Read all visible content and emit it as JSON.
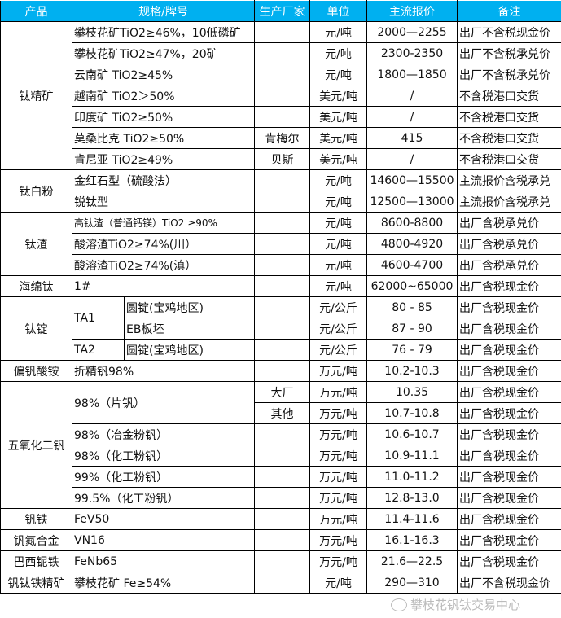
{
  "header": [
    "产品",
    "规格/牌号",
    "生产厂家",
    "单位",
    "主流报价",
    "备注"
  ],
  "colors": {
    "header_bg": "#00B0F0",
    "header_text": "#FFFFFF"
  },
  "groups": [
    {
      "product": "钛精矿",
      "rows": [
        {
          "spec": "攀枝花矿TiO2≥46%，10低磷矿",
          "maker": "",
          "unit": "元/吨",
          "price": "2000—2255",
          "note": "出厂不含税现金价"
        },
        {
          "spec": "攀枝花矿TiO2≥47%，20矿",
          "maker": "",
          "unit": "元/吨",
          "price": "2300-2350",
          "note": "出厂不含税承兑价"
        },
        {
          "spec": "云南矿 TiO2≥45%",
          "maker": "",
          "unit": "元/吨",
          "price": "1800—1850",
          "note": "出厂不含税承兑价"
        },
        {
          "spec": "越南矿 TiO2＞50%",
          "maker": "",
          "unit": "美元/吨",
          "price": "/",
          "note": "不含税港口交货"
        },
        {
          "spec": "印度矿 TiO2≥50%",
          "maker": "",
          "unit": "美元/吨",
          "price": "/",
          "note": "不含税港口交货"
        },
        {
          "spec": "莫桑比克 TiO2≥50%",
          "maker": "肯梅尔",
          "unit": "美元/吨",
          "price": "415",
          "note": "不含税港口交货"
        },
        {
          "spec": "肯尼亚 TiO2≥49%",
          "maker": "贝斯",
          "unit": "美元/吨",
          "price": "/",
          "note": "不含税港口交货"
        }
      ]
    },
    {
      "product": "钛白粉",
      "rows": [
        {
          "spec": "金红石型（硫酸法）",
          "maker": "",
          "unit": "元/吨",
          "price": "14600—15500",
          "note": "主流报价含税承兑"
        },
        {
          "spec": "锐钛型",
          "maker": "",
          "unit": "元/吨",
          "price": "12500—13000",
          "note": "主流报价含税承兑"
        }
      ]
    },
    {
      "product": "钛渣",
      "rows": [
        {
          "spec": "高钛渣（普通钙镁）TiO2 ≥90%",
          "maker": "",
          "unit": "元/吨",
          "price": "8600-8800",
          "note": "出厂含税承兑价"
        },
        {
          "spec": "酸溶渣TiO2≥74%(川）",
          "maker": "",
          "unit": "元/吨",
          "price": "4800-4920",
          "note": "出厂含税承兑价"
        },
        {
          "spec": "酸溶渣TiO2≥74%(滇）",
          "maker": "",
          "unit": "元/吨",
          "price": "4600-4700",
          "note": "出厂含税承兑价"
        }
      ]
    },
    {
      "product": "海绵钛",
      "rows": [
        {
          "spec": "1#",
          "maker": "",
          "unit": "元/吨",
          "price": "62000~65000",
          "note": "出厂含税现金价"
        }
      ]
    },
    {
      "product": "钛锭",
      "rows": [
        {
          "grade": "TA1",
          "spec": "圆锭(宝鸡地区)",
          "maker": "",
          "unit": "元/公斤",
          "price": "80 - 85",
          "note": "出厂含税现金价"
        },
        {
          "grade": "TA1",
          "spec": "EB板坯",
          "maker": "",
          "unit": "元/公斤",
          "price": "87 - 90",
          "note": "出厂含税现金价"
        },
        {
          "grade": "TA2",
          "spec": "圆锭(宝鸡地区)",
          "maker": "",
          "unit": "元/公斤",
          "price": "76 - 79",
          "note": "出厂含税现金价"
        }
      ]
    },
    {
      "product": "偏钒酸铵",
      "rows": [
        {
          "spec": "折精钒98%",
          "maker": "",
          "unit": "万元/吨",
          "price": "10.2-10.3",
          "note": "出厂含税现金价"
        }
      ]
    },
    {
      "product": "五氧化二钒",
      "rows": [
        {
          "spec": "98%（片钒）",
          "maker": "大厂",
          "unit": "万元/吨",
          "price": "10.35",
          "note": "出厂含税现金价"
        },
        {
          "spec": "98%（片钒）",
          "maker": "其他",
          "unit": "万元/吨",
          "price": "10.7-10.8",
          "note": "出厂含税现金价"
        },
        {
          "spec": "98%（冶金粉钒）",
          "maker": "",
          "unit": "万元/吨",
          "price": "10.6-10.7",
          "note": "出厂含税现金价"
        },
        {
          "spec": "98%（化工粉钒）",
          "maker": "",
          "unit": "万元/吨",
          "price": "10.9-11.1",
          "note": "出厂含税现金价"
        },
        {
          "spec": "99%（化工粉钒）",
          "maker": "",
          "unit": "万元/吨",
          "price": "11.0-11.2",
          "note": "出厂含税现金价"
        },
        {
          "spec": "99.5%（化工粉钒）",
          "maker": "",
          "unit": "万元/吨",
          "price": "12.8-13.0",
          "note": "出厂含税现金价"
        }
      ]
    },
    {
      "product": "钒铁",
      "rows": [
        {
          "spec": "FeV50",
          "maker": "",
          "unit": "万元/吨",
          "price": "11.4-11.6",
          "note": "出厂含税现金价"
        }
      ]
    },
    {
      "product": "钒氮合金",
      "rows": [
        {
          "spec": "VN16",
          "maker": "",
          "unit": "万元/吨",
          "price": "16.1-16.3",
          "note": "出厂含税现金价"
        }
      ]
    },
    {
      "product": "巴西铌铁",
      "rows": [
        {
          "spec": "FeNb65",
          "maker": "",
          "unit": "万元/吨",
          "price": "21.6—22.5",
          "note": "出厂含税现金价"
        }
      ]
    },
    {
      "product": "钒钛铁精矿",
      "rows": [
        {
          "spec": "攀枝花矿 Fe≥54%",
          "maker": "",
          "unit": "元/吨",
          "price": "290—310",
          "note": "出厂不含税现金价"
        }
      ]
    }
  ],
  "watermark": {
    "text": "攀枝花钒钛交易中心",
    "icon": "wechat-icon"
  }
}
